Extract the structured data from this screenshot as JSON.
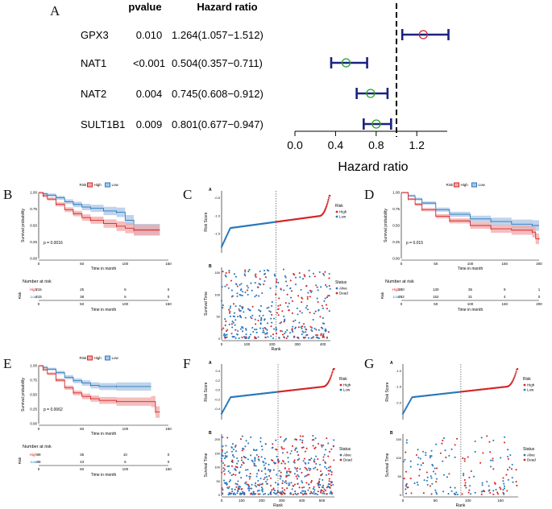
{
  "panel_letters": {
    "A": "A",
    "B": "B",
    "C": "C",
    "D": "D",
    "E": "E",
    "F": "F",
    "G": "G"
  },
  "chart_data": [
    {
      "panel": "A",
      "type": "forest",
      "headers": {
        "pvalue": "pvalue",
        "hazard": "Hazard ratio"
      },
      "rows": [
        {
          "gene": "GPX3",
          "pvalue": "0.010",
          "hr_text": "1.264(1.057−1.512)",
          "hr": 1.264,
          "lo": 1.057,
          "hi": 1.512,
          "color": "#d62728"
        },
        {
          "gene": "NAT1",
          "pvalue": "<0.001",
          "hr_text": "0.504(0.357−0.711)",
          "hr": 0.504,
          "lo": 0.357,
          "hi": 0.711,
          "color": "#2ca02c"
        },
        {
          "gene": "NAT2",
          "pvalue": "0.004",
          "hr_text": "0.745(0.608−0.912)",
          "hr": 0.745,
          "lo": 0.608,
          "hi": 0.912,
          "color": "#2ca02c"
        },
        {
          "gene": "SULT1B1",
          "pvalue": "0.009",
          "hr_text": "0.801(0.677−0.947)",
          "hr": 0.801,
          "lo": 0.677,
          "hi": 0.947,
          "color": "#2ca02c"
        }
      ],
      "xlim": [
        0.0,
        1.5
      ],
      "ticks": [
        "0.0",
        "0.4",
        "0.8",
        "1.2"
      ],
      "tick_values": [
        0.0,
        0.4,
        0.8,
        1.2
      ],
      "ref_line": 1.0,
      "xlabel": "Hazard ratio"
    },
    {
      "panel": "B",
      "type": "km",
      "legend": {
        "title": "Risk",
        "high": "High",
        "low": "Low"
      },
      "ylabel": "Survival probability",
      "xlabel": "Time in month",
      "yticks": [
        "1.00",
        "0.75",
        "0.50",
        "0.25",
        "0.00"
      ],
      "xticks": [
        "0",
        "50",
        "100",
        "150"
      ],
      "xmax": 150,
      "pvalue": "p = 0.0016",
      "high": [
        [
          0,
          1
        ],
        [
          5,
          0.95
        ],
        [
          10,
          0.9
        ],
        [
          20,
          0.82
        ],
        [
          30,
          0.74
        ],
        [
          40,
          0.68
        ],
        [
          50,
          0.62
        ],
        [
          60,
          0.58
        ],
        [
          75,
          0.53
        ],
        [
          90,
          0.49
        ],
        [
          100,
          0.46
        ],
        [
          110,
          0.43
        ],
        [
          140,
          0.43
        ]
      ],
      "low": [
        [
          0,
          1
        ],
        [
          5,
          0.98
        ],
        [
          10,
          0.96
        ],
        [
          20,
          0.92
        ],
        [
          30,
          0.86
        ],
        [
          40,
          0.82
        ],
        [
          50,
          0.78
        ],
        [
          60,
          0.76
        ],
        [
          75,
          0.72
        ],
        [
          90,
          0.7
        ],
        [
          100,
          0.58
        ],
        [
          110,
          0.44
        ],
        [
          140,
          0.44
        ]
      ],
      "band": 0.09,
      "risk": {
        "title": "Number at risk",
        "label": "Risk",
        "rows": [
          {
            "name": "High",
            "vals": [
              "215",
              "25",
              "5",
              "0"
            ]
          },
          {
            "name": "Low",
            "vals": [
              "215",
              "38",
              "5",
              "0"
            ]
          }
        ],
        "xlabel": "Time in month"
      }
    },
    {
      "panel": "C",
      "type": "risk_score",
      "n": 430,
      "cutoff": 215,
      "subA": "A",
      "subB": "B",
      "ylabelA": "Risk Score",
      "ylabelB": "Survival Time",
      "xlabel": "Rank",
      "legendA": {
        "title": "Risk",
        "items": [
          "High",
          "Low"
        ]
      },
      "legendB": {
        "title": "Status",
        "items": [
          "Alive",
          "Dead"
        ]
      },
      "xticks": [
        "0",
        "100",
        "200",
        "300",
        "400"
      ],
      "ymin": -1.5,
      "ymax": 2.0,
      "ytickA": [
        "-0.5",
        "-1.0",
        "-1.5"
      ],
      "ytickB": [
        "150",
        "100",
        "50",
        "0"
      ],
      "tmax": 160,
      "seed": 11
    },
    {
      "panel": "D",
      "type": "km",
      "legend": {
        "title": "Risk",
        "high": "High",
        "low": "Low"
      },
      "ylabel": "Survival probability",
      "xlabel": "Time in month",
      "yticks": [
        "1.00",
        "0.75",
        "0.50",
        "0.25",
        "0.00"
      ],
      "xticks": [
        "0",
        "50",
        "100",
        "150",
        "200"
      ],
      "xmax": 200,
      "pvalue": "p = 0.015",
      "high": [
        [
          0,
          1
        ],
        [
          10,
          0.9
        ],
        [
          20,
          0.82
        ],
        [
          30,
          0.74
        ],
        [
          50,
          0.64
        ],
        [
          70,
          0.57
        ],
        [
          100,
          0.5
        ],
        [
          130,
          0.45
        ],
        [
          160,
          0.43
        ],
        [
          190,
          0.4
        ],
        [
          195,
          0.3
        ],
        [
          200,
          0.3
        ]
      ],
      "low": [
        [
          0,
          1
        ],
        [
          10,
          0.95
        ],
        [
          20,
          0.9
        ],
        [
          30,
          0.84
        ],
        [
          50,
          0.74
        ],
        [
          70,
          0.67
        ],
        [
          100,
          0.6
        ],
        [
          130,
          0.56
        ],
        [
          160,
          0.52
        ],
        [
          190,
          0.5
        ],
        [
          200,
          0.5
        ]
      ],
      "band": 0.07,
      "risk": {
        "title": "Number at risk",
        "label": "Risk",
        "rows": [
          {
            "name": "High",
            "vals": [
              "280",
              "130",
              "35",
              "9",
              "1"
            ]
          },
          {
            "name": "Low",
            "vals": [
              "282",
              "152",
              "31",
              "4",
              "0"
            ]
          }
        ],
        "xlabel": "Time in month"
      }
    },
    {
      "panel": "E",
      "type": "km",
      "legend": {
        "title": "Risk",
        "high": "High",
        "low": "Low"
      },
      "ylabel": "Survival probability",
      "xlabel": "Time in month",
      "yticks": [
        "1.00",
        "0.75",
        "0.50",
        "0.25",
        "0.00"
      ],
      "xticks": [
        "0",
        "50",
        "100",
        "150"
      ],
      "xmax": 150,
      "pvalue": "p = 0.0062",
      "high": [
        [
          0,
          1
        ],
        [
          5,
          0.93
        ],
        [
          10,
          0.86
        ],
        [
          20,
          0.75
        ],
        [
          30,
          0.62
        ],
        [
          40,
          0.53
        ],
        [
          50,
          0.47
        ],
        [
          60,
          0.43
        ],
        [
          70,
          0.4
        ],
        [
          90,
          0.38
        ],
        [
          130,
          0.38
        ],
        [
          135,
          0.2
        ],
        [
          140,
          0.2
        ]
      ],
      "low": [
        [
          0,
          1
        ],
        [
          5,
          0.97
        ],
        [
          10,
          0.94
        ],
        [
          20,
          0.88
        ],
        [
          30,
          0.8
        ],
        [
          40,
          0.74
        ],
        [
          50,
          0.7
        ],
        [
          60,
          0.66
        ],
        [
          70,
          0.64
        ],
        [
          90,
          0.64
        ],
        [
          130,
          0.64
        ]
      ],
      "band": 0.09,
      "risk": {
        "title": "Number at risk",
        "label": "Risk",
        "rows": [
          {
            "name": "High",
            "vals": [
              "89",
              "35",
              "10",
              "0"
            ]
          },
          {
            "name": "Low",
            "vals": [
              "88",
              "43",
              "5",
              "0"
            ]
          }
        ],
        "xlabel": "Time in month"
      }
    },
    {
      "panel": "F",
      "type": "risk_score",
      "n": 562,
      "cutoff": 281,
      "subA": "A",
      "subB": "B",
      "ylabelA": "Risk Score",
      "ylabelB": "Survival Time",
      "xlabel": "Rank",
      "legendA": {
        "title": "Risk",
        "items": [
          "High",
          "Low"
        ]
      },
      "legendB": {
        "title": "Status",
        "items": [
          "Alive",
          "Dead"
        ]
      },
      "xticks": [
        "0",
        "100",
        "200",
        "300",
        "400",
        "500"
      ],
      "ymin": -0.8,
      "ymax": 0.5,
      "ytickA": [
        "0.4",
        "0.2",
        "0.0",
        "-0.2",
        "-0.4"
      ],
      "ytickB": [
        "200",
        "150",
        "100",
        "50",
        "0"
      ],
      "tmax": 220,
      "seed": 23
    },
    {
      "panel": "G",
      "type": "risk_score",
      "n": 177,
      "cutoff": 89,
      "subA": "A",
      "subB": "B",
      "ylabelA": "Risk Score",
      "ylabelB": "Survival Time",
      "xlabel": "Rank",
      "legendA": {
        "title": "Risk",
        "items": [
          "High",
          "Low"
        ]
      },
      "legendB": {
        "title": "Status",
        "items": [
          "Alive",
          "Dead"
        ]
      },
      "xticks": [
        "0",
        "50",
        "100",
        "150"
      ],
      "ymin": -2.3,
      "ymax": -0.7,
      "ytickA": [
        "-1.0",
        "-1.5",
        "-2.0"
      ],
      "ytickB": [
        "150",
        "100",
        "50",
        "0"
      ],
      "tmax": 170,
      "seed": 37
    }
  ],
  "colors": {
    "high": "#d62728",
    "low": "#2a78bd",
    "high_band": "#f1a7a7",
    "low_band": "#a9c6e6",
    "forest_bar": "#1a237e"
  }
}
